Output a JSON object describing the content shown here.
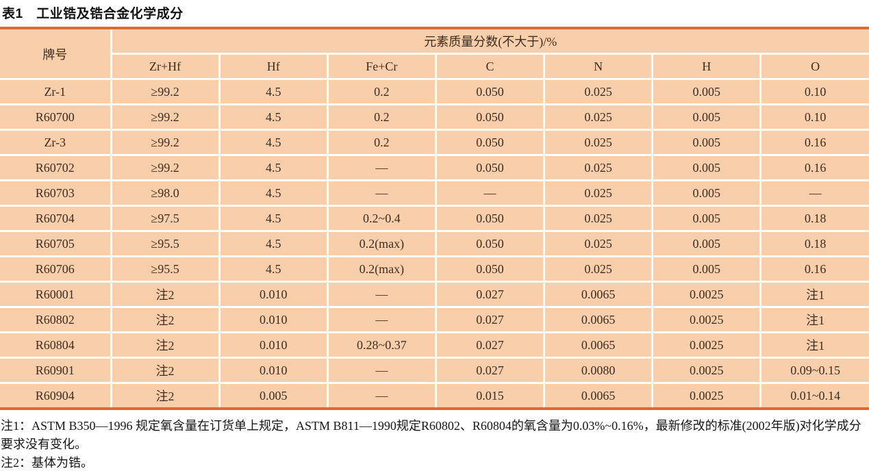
{
  "title": "表1　工业锆及锆合金化学成分",
  "table": {
    "grade_header": "牌号",
    "group_header": "元素质量分数(不大于)/%",
    "columns": [
      "Zr+Hf",
      "Hf",
      "Fe+Cr",
      "C",
      "N",
      "H",
      "O"
    ],
    "rows": [
      {
        "grade": "Zr-1",
        "values": [
          "≥99.2",
          "4.5",
          "0.2",
          "0.050",
          "0.025",
          "0.005",
          "0.10"
        ]
      },
      {
        "grade": "R60700",
        "values": [
          "≥99.2",
          "4.5",
          "0.2",
          "0.050",
          "0.025",
          "0.005",
          "0.10"
        ]
      },
      {
        "grade": "Zr-3",
        "values": [
          "≥99.2",
          "4.5",
          "0.2",
          "0.050",
          "0.025",
          "0.005",
          "0.16"
        ]
      },
      {
        "grade": "R60702",
        "values": [
          "≥99.2",
          "4.5",
          "—",
          "0.050",
          "0.025",
          "0.005",
          "0.16"
        ]
      },
      {
        "grade": "R60703",
        "values": [
          "≥98.0",
          "4.5",
          "—",
          "—",
          "0.025",
          "0.005",
          "—"
        ]
      },
      {
        "grade": "R60704",
        "values": [
          "≥97.5",
          "4.5",
          "0.2~0.4",
          "0.050",
          "0.025",
          "0.005",
          "0.18"
        ]
      },
      {
        "grade": "R60705",
        "values": [
          "≥95.5",
          "4.5",
          "0.2(max)",
          "0.050",
          "0.025",
          "0.005",
          "0.18"
        ]
      },
      {
        "grade": "R60706",
        "values": [
          "≥95.5",
          "4.5",
          "0.2(max)",
          "0.050",
          "0.025",
          "0.005",
          "0.16"
        ]
      },
      {
        "grade": "R60001",
        "values": [
          "注2",
          "0.010",
          "—",
          "0.027",
          "0.0065",
          "0.0025",
          "注1"
        ]
      },
      {
        "grade": "R60802",
        "values": [
          "注2",
          "0.010",
          "—",
          "0.027",
          "0.0065",
          "0.0025",
          "注1"
        ]
      },
      {
        "grade": "R60804",
        "values": [
          "注2",
          "0.010",
          "0.28~0.37",
          "0.027",
          "0.0065",
          "0.0025",
          "注1"
        ]
      },
      {
        "grade": "R60901",
        "values": [
          "注2",
          "0.010",
          "—",
          "0.027",
          "0.0080",
          "0.0025",
          "0.09~0.15"
        ]
      },
      {
        "grade": "R60904",
        "values": [
          "注2",
          "0.005",
          "—",
          "0.015",
          "0.0065",
          "0.0025",
          "0.01~0.14"
        ]
      }
    ]
  },
  "notes": [
    "注1：ASTM B350—1996 规定氧含量在订货单上规定，ASTM B811—1990规定R60802、R60804的氧含量为0.03%~0.16%，最新修改的标准(2002年版)对化学成分要求没有变化。",
    "注2：基体为锆。"
  ],
  "colors": {
    "cell_bg": "#f9cfab",
    "accent_rule": "#dd6a30",
    "grid_line": "#ffffff"
  }
}
